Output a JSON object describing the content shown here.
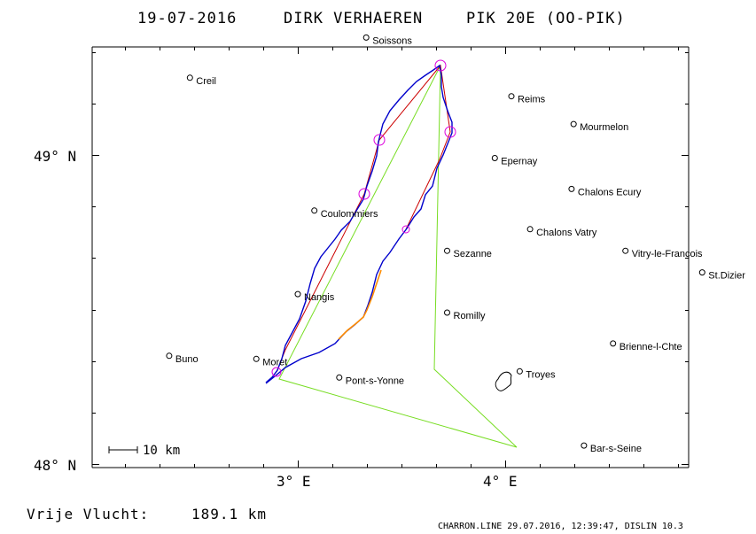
{
  "header": {
    "date": "19-07-2016",
    "pilot": "DIRK VERHAEREN",
    "glider": "PIK 20E (OO-PIK)"
  },
  "axes": {
    "lat_labels": [
      "49° N",
      "48° N"
    ],
    "lon_labels": [
      "3° E",
      "4° E"
    ]
  },
  "scale_bar": {
    "label": "10 km"
  },
  "towns": [
    {
      "name": "Soissons",
      "lon": 3.33,
      "lat": 49.38
    },
    {
      "name": "Creil",
      "lon": 2.48,
      "lat": 49.25
    },
    {
      "name": "Reims",
      "lon": 4.03,
      "lat": 49.19
    },
    {
      "name": "Mourmelon",
      "lon": 4.33,
      "lat": 49.1
    },
    {
      "name": "Epernay",
      "lon": 3.95,
      "lat": 48.99
    },
    {
      "name": "Chalons Ecury",
      "lon": 4.32,
      "lat": 48.89
    },
    {
      "name": "Coulommiers",
      "lon": 3.08,
      "lat": 48.82
    },
    {
      "name": "Chalons Vatry",
      "lon": 4.12,
      "lat": 48.76
    },
    {
      "name": "Sezanne",
      "lon": 3.72,
      "lat": 48.69
    },
    {
      "name": "Vitry-le-Francois",
      "lon": 4.58,
      "lat": 48.69
    },
    {
      "name": "St.Dizier",
      "lon": 4.95,
      "lat": 48.62
    },
    {
      "name": "Nangis",
      "lon": 3.0,
      "lat": 48.55
    },
    {
      "name": "Romilly",
      "lon": 3.72,
      "lat": 48.49
    },
    {
      "name": "Brienne-l-Chte",
      "lon": 4.52,
      "lat": 48.39
    },
    {
      "name": "Buno",
      "lon": 2.38,
      "lat": 48.35
    },
    {
      "name": "Moret",
      "lon": 2.8,
      "lat": 48.34
    },
    {
      "name": "Troyes",
      "lon": 4.07,
      "lat": 48.3
    },
    {
      "name": "Pont-s-Yonne",
      "lon": 3.2,
      "lat": 48.28
    },
    {
      "name": "Bar-s-Seine",
      "lon": 4.38,
      "lat": 48.06
    }
  ],
  "footer": {
    "distance_label": "Vrije Vlucht:",
    "distance_value": "189.1 km",
    "credit": "CHARRON.LINE 29.07.2016, 12:39:47, DISLIN 10.3"
  },
  "colors": {
    "track_main": "#0000cc",
    "track_alt": "#ff8c00",
    "route": "#cc0000",
    "task": "#77dd22",
    "turnpoint": "#dd00dd",
    "axes": "#000000"
  }
}
